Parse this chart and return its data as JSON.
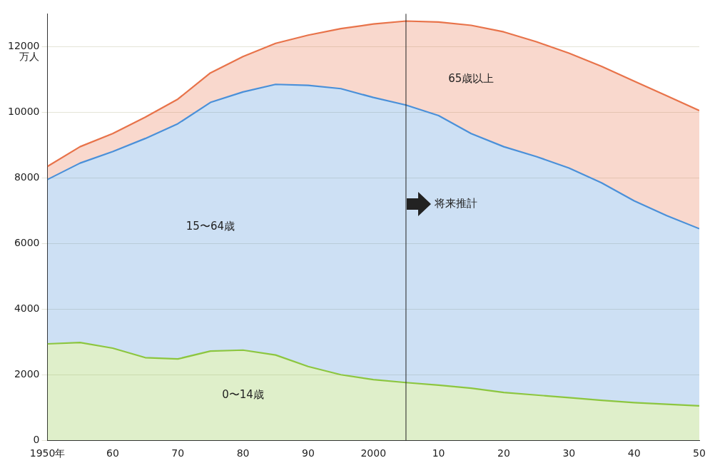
{
  "chart_data": {
    "type": "area",
    "stacked": true,
    "ylabel": "万人",
    "x": [
      1950,
      1955,
      1960,
      1965,
      1970,
      1975,
      1980,
      1985,
      1990,
      1995,
      2000,
      2005,
      2010,
      2015,
      2020,
      2025,
      2030,
      2035,
      2040,
      2045,
      2050
    ],
    "series": [
      {
        "name": "0〜14歳",
        "color": "#8cc63f",
        "values": [
          2940,
          2980,
          2810,
          2520,
          2480,
          2720,
          2750,
          2600,
          2250,
          2000,
          1850,
          1760,
          1680,
          1590,
          1460,
          1380,
          1300,
          1220,
          1150,
          1100,
          1050
        ]
      },
      {
        "name": "15〜64歳",
        "color": "#4a90d9",
        "values": [
          5010,
          5470,
          5990,
          6680,
          7170,
          7580,
          7870,
          8250,
          8570,
          8720,
          8600,
          8460,
          8220,
          7760,
          7490,
          7270,
          7000,
          6630,
          6150,
          5750,
          5400
        ]
      },
      {
        "name": "65歳以上",
        "color": "#e8734a",
        "values": [
          400,
          500,
          550,
          650,
          750,
          900,
          1080,
          1250,
          1530,
          1830,
          2240,
          2560,
          2850,
          3300,
          3500,
          3500,
          3500,
          3550,
          3650,
          3650,
          3600
        ]
      }
    ],
    "xlim": [
      1950,
      2050
    ],
    "xticks": [
      {
        "value": 1950,
        "label": "1950年"
      },
      {
        "value": 1960,
        "label": "60"
      },
      {
        "value": 1970,
        "label": "70"
      },
      {
        "value": 1980,
        "label": "80"
      },
      {
        "value": 1990,
        "label": "90"
      },
      2000,
      {
        "value": 2010,
        "label": "10"
      },
      {
        "value": 2020,
        "label": "20"
      },
      {
        "value": 2030,
        "label": "30"
      },
      {
        "value": 2040,
        "label": "40"
      },
      {
        "value": 2050,
        "label": "50"
      }
    ],
    "ylim": [
      0,
      13000
    ],
    "yticks": [
      0,
      2000,
      4000,
      6000,
      8000,
      10000,
      12000
    ],
    "grid": "y",
    "legend": false,
    "marker": "none",
    "ref_lines": [
      {
        "axis": "x",
        "value": 2005,
        "label": "将来推計",
        "color": "#222222"
      }
    ]
  }
}
